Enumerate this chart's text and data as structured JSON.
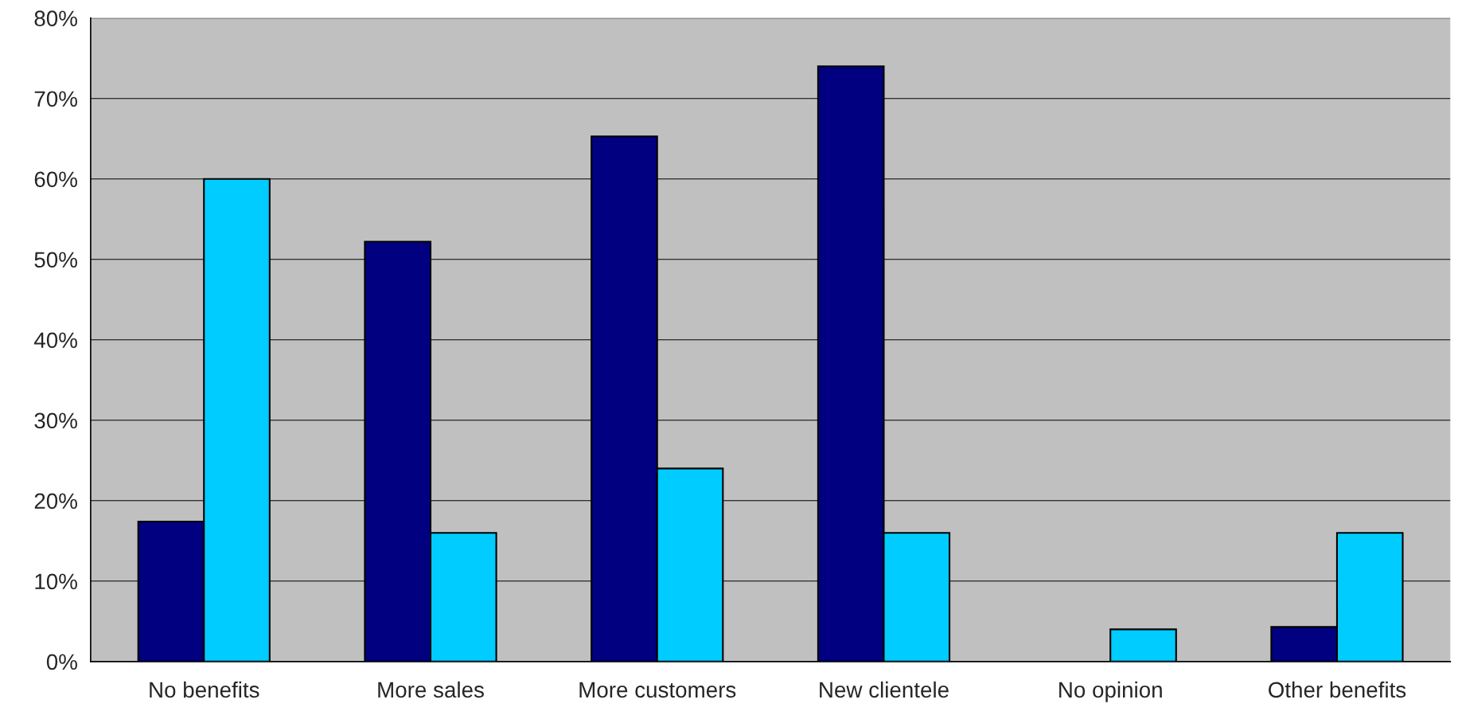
{
  "chart_data": {
    "type": "bar",
    "categories": [
      "No benefits",
      "More sales",
      "More customers",
      "New clientele",
      "No opinion",
      "Other benefits"
    ],
    "series": [
      {
        "color": "#000080",
        "values": [
          17.4,
          52.2,
          65.3,
          74.0,
          null,
          4.3
        ]
      },
      {
        "color": "#00ccff",
        "values": [
          60,
          16,
          24,
          16,
          4,
          16
        ]
      }
    ],
    "ylim": [
      0,
      80
    ],
    "yticks": [
      {
        "value": 0,
        "label": "0%"
      },
      {
        "value": 10,
        "label": "10%"
      },
      {
        "value": 20,
        "label": "20%"
      },
      {
        "value": 30,
        "label": "30%"
      },
      {
        "value": 40,
        "label": "40%"
      },
      {
        "value": 50,
        "label": "50%"
      },
      {
        "value": 60,
        "label": "60%"
      },
      {
        "value": 70,
        "label": "70%"
      },
      {
        "value": 80,
        "label": "80%"
      }
    ],
    "grid": "y",
    "legend": false
  }
}
